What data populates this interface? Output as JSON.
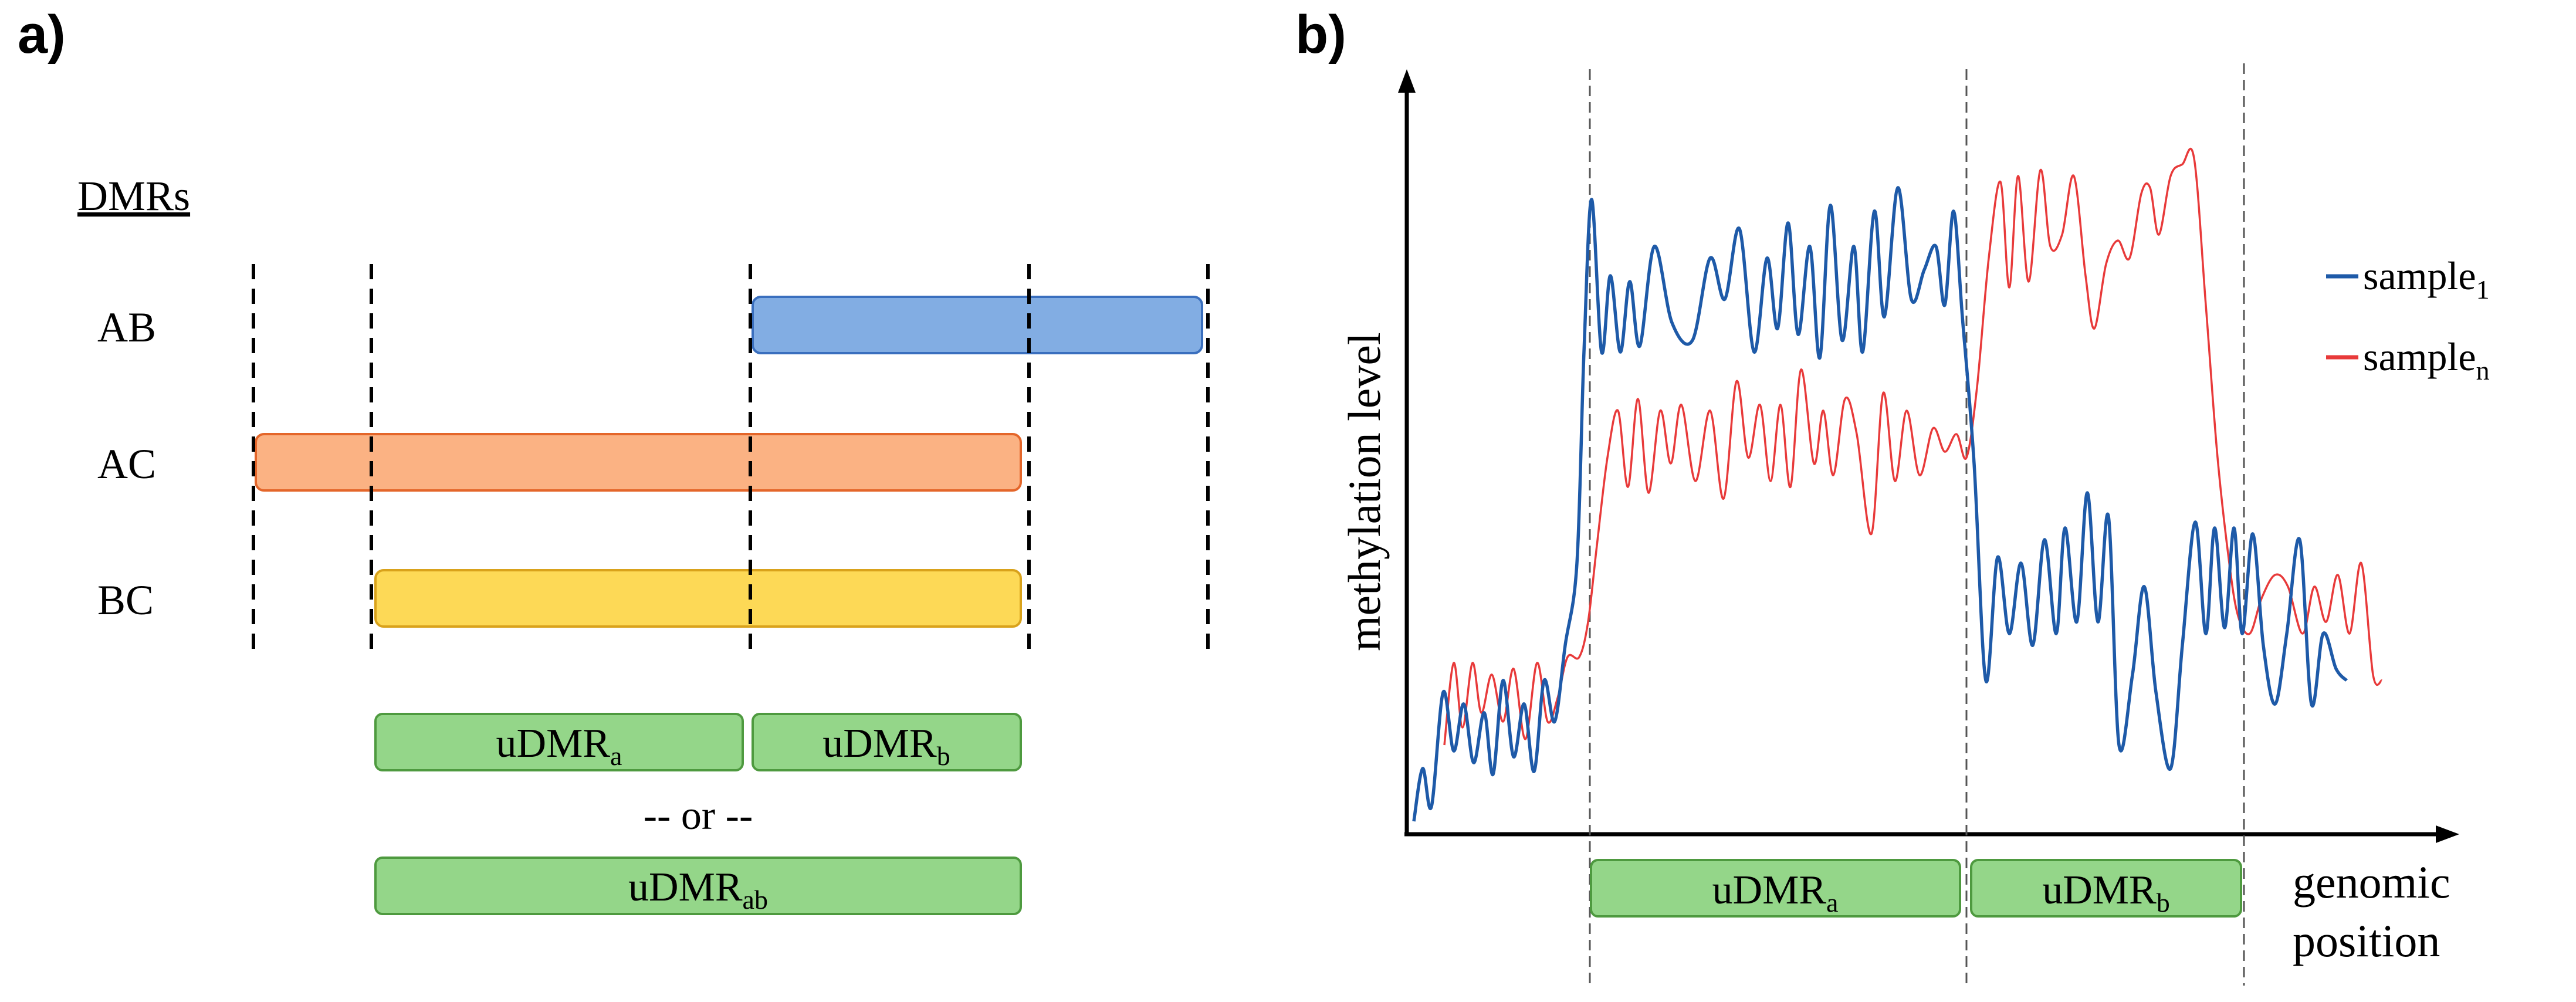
{
  "panel_a": {
    "label": "a)",
    "header": "DMRs",
    "rows": [
      {
        "label": "AB",
        "color": "#82ADE3",
        "stroke": "#3A6FBE"
      },
      {
        "label": "AC",
        "color": "#FBB283",
        "stroke": "#E4662A"
      },
      {
        "label": "BC",
        "color": "#FDD956",
        "stroke": "#D9A21B"
      }
    ],
    "udmr_a": {
      "base": "uDMR",
      "sub": "a"
    },
    "udmr_b": {
      "base": "uDMR",
      "sub": "b"
    },
    "or_text": "-- or --",
    "udmr_ab": {
      "base": "uDMR",
      "sub": "ab"
    },
    "udmr_color": "#94D689",
    "udmr_stroke": "#4E9A3F"
  },
  "panel_b": {
    "label": "b)",
    "ylabel": "methylation level",
    "xlabel_line1": "genomic",
    "xlabel_line2": "position",
    "legend": [
      {
        "base": "sample",
        "sub": "1",
        "color": "#1E5AA8"
      },
      {
        "base": "sample",
        "sub": "n",
        "color": "#E83A3A"
      }
    ],
    "udmr_a": {
      "base": "uDMR",
      "sub": "a"
    },
    "udmr_b": {
      "base": "uDMR",
      "sub": "b"
    }
  }
}
